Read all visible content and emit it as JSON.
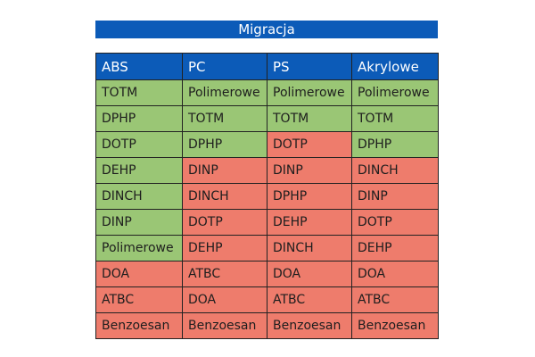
{
  "title": "Migracja",
  "colors": {
    "header": "#0c5bb8",
    "good": "#9ac675",
    "bad": "#ee7c6c"
  },
  "table": {
    "headers": [
      "ABS",
      "PC",
      "PS",
      "Akrylowe"
    ],
    "rows": [
      [
        {
          "text": "TOTM",
          "status": "good"
        },
        {
          "text": "Polimerowe",
          "status": "good"
        },
        {
          "text": "Polimerowe",
          "status": "good"
        },
        {
          "text": "Polimerowe",
          "status": "good"
        }
      ],
      [
        {
          "text": "DPHP",
          "status": "good"
        },
        {
          "text": "TOTM",
          "status": "good"
        },
        {
          "text": "TOTM",
          "status": "good"
        },
        {
          "text": "TOTM",
          "status": "good"
        }
      ],
      [
        {
          "text": "DOTP",
          "status": "good"
        },
        {
          "text": "DPHP",
          "status": "good"
        },
        {
          "text": "DOTP",
          "status": "bad"
        },
        {
          "text": "DPHP",
          "status": "good"
        }
      ],
      [
        {
          "text": "DEHP",
          "status": "good"
        },
        {
          "text": "DINP",
          "status": "bad"
        },
        {
          "text": "DINP",
          "status": "bad"
        },
        {
          "text": "DINCH",
          "status": "bad"
        }
      ],
      [
        {
          "text": "DINCH",
          "status": "good"
        },
        {
          "text": "DINCH",
          "status": "bad"
        },
        {
          "text": "DPHP",
          "status": "bad"
        },
        {
          "text": "DINP",
          "status": "bad"
        }
      ],
      [
        {
          "text": "DINP",
          "status": "good"
        },
        {
          "text": "DOTP",
          "status": "bad"
        },
        {
          "text": "DEHP",
          "status": "bad"
        },
        {
          "text": "DOTP",
          "status": "bad"
        }
      ],
      [
        {
          "text": "Polimerowe",
          "status": "good"
        },
        {
          "text": "DEHP",
          "status": "bad"
        },
        {
          "text": "DINCH",
          "status": "bad"
        },
        {
          "text": "DEHP",
          "status": "bad"
        }
      ],
      [
        {
          "text": "DOA",
          "status": "bad"
        },
        {
          "text": "ATBC",
          "status": "bad"
        },
        {
          "text": "DOA",
          "status": "bad"
        },
        {
          "text": "DOA",
          "status": "bad"
        }
      ],
      [
        {
          "text": "ATBC",
          "status": "bad"
        },
        {
          "text": "DOA",
          "status": "bad"
        },
        {
          "text": "ATBC",
          "status": "bad"
        },
        {
          "text": "ATBC",
          "status": "bad"
        }
      ],
      [
        {
          "text": "Benzoesan",
          "status": "bad"
        },
        {
          "text": "Benzoesan",
          "status": "bad"
        },
        {
          "text": "Benzoesan",
          "status": "bad"
        },
        {
          "text": "Benzoesan",
          "status": "bad"
        }
      ]
    ]
  }
}
